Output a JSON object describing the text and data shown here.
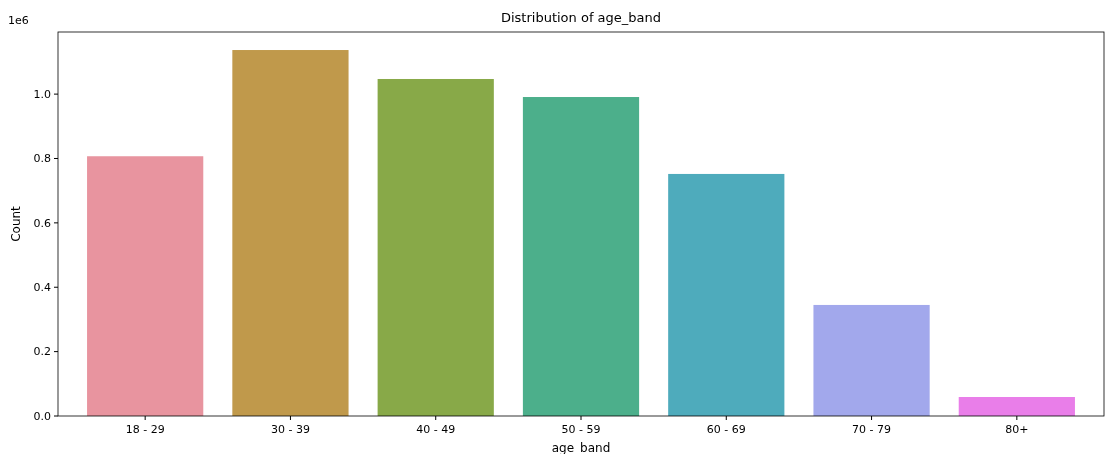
{
  "chart_data": {
    "type": "bar",
    "title": "Distribution of age_band",
    "xlabel": "age_band",
    "ylabel": "Count",
    "annotations": [
      "1e6"
    ],
    "categories": [
      "18 - 29",
      "30 - 39",
      "40 - 49",
      "50 - 59",
      "60 - 69",
      "70 - 79",
      "80+"
    ],
    "values": [
      0.807,
      1.137,
      1.047,
      0.991,
      0.752,
      0.345,
      0.059
    ],
    "colors": [
      "#e8949f",
      "#c0994b",
      "#88a948",
      "#4caf8b",
      "#4eabbc",
      "#a2a8ec",
      "#e97ee9"
    ],
    "ylim": [
      0,
      1.193
    ],
    "yticks": [
      {
        "value": 0,
        "label": "0.0"
      },
      {
        "value": 0.2,
        "label": "0.2"
      },
      {
        "value": 0.4,
        "label": "0.4"
      },
      {
        "value": 0.6,
        "label": "0.6"
      },
      {
        "value": 0.8,
        "label": "0.8"
      },
      {
        "value": 1,
        "label": "1.0"
      }
    ],
    "grid": false
  }
}
